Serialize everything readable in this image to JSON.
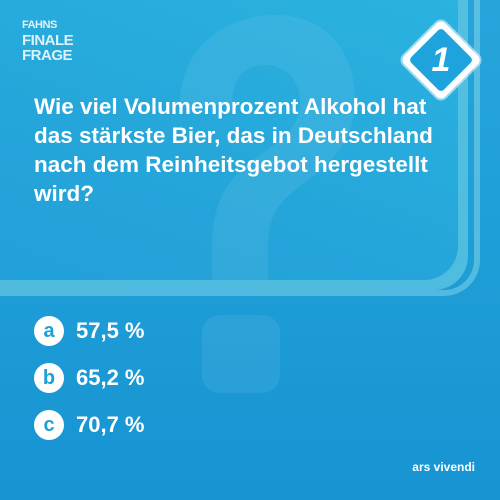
{
  "brand": {
    "line1": "FAHNS",
    "line2": "FINALE",
    "line3": "FRAGE"
  },
  "badge": {
    "number": "1"
  },
  "question": {
    "text": "Wie viel Volumenprozent Alkohol hat das stärkste Bier, das in Deutschland nach dem Reinheitsgebot hergestellt wird?"
  },
  "answers": [
    {
      "letter": "a",
      "text": "57,5 %"
    },
    {
      "letter": "b",
      "text": "65,2 %"
    },
    {
      "letter": "c",
      "text": "70,7 %"
    }
  ],
  "footer": {
    "publisher": "ars vivendi"
  },
  "colors": {
    "background": "#1f9fd8",
    "text": "#ffffff",
    "accent_light": "#78d7e6"
  }
}
